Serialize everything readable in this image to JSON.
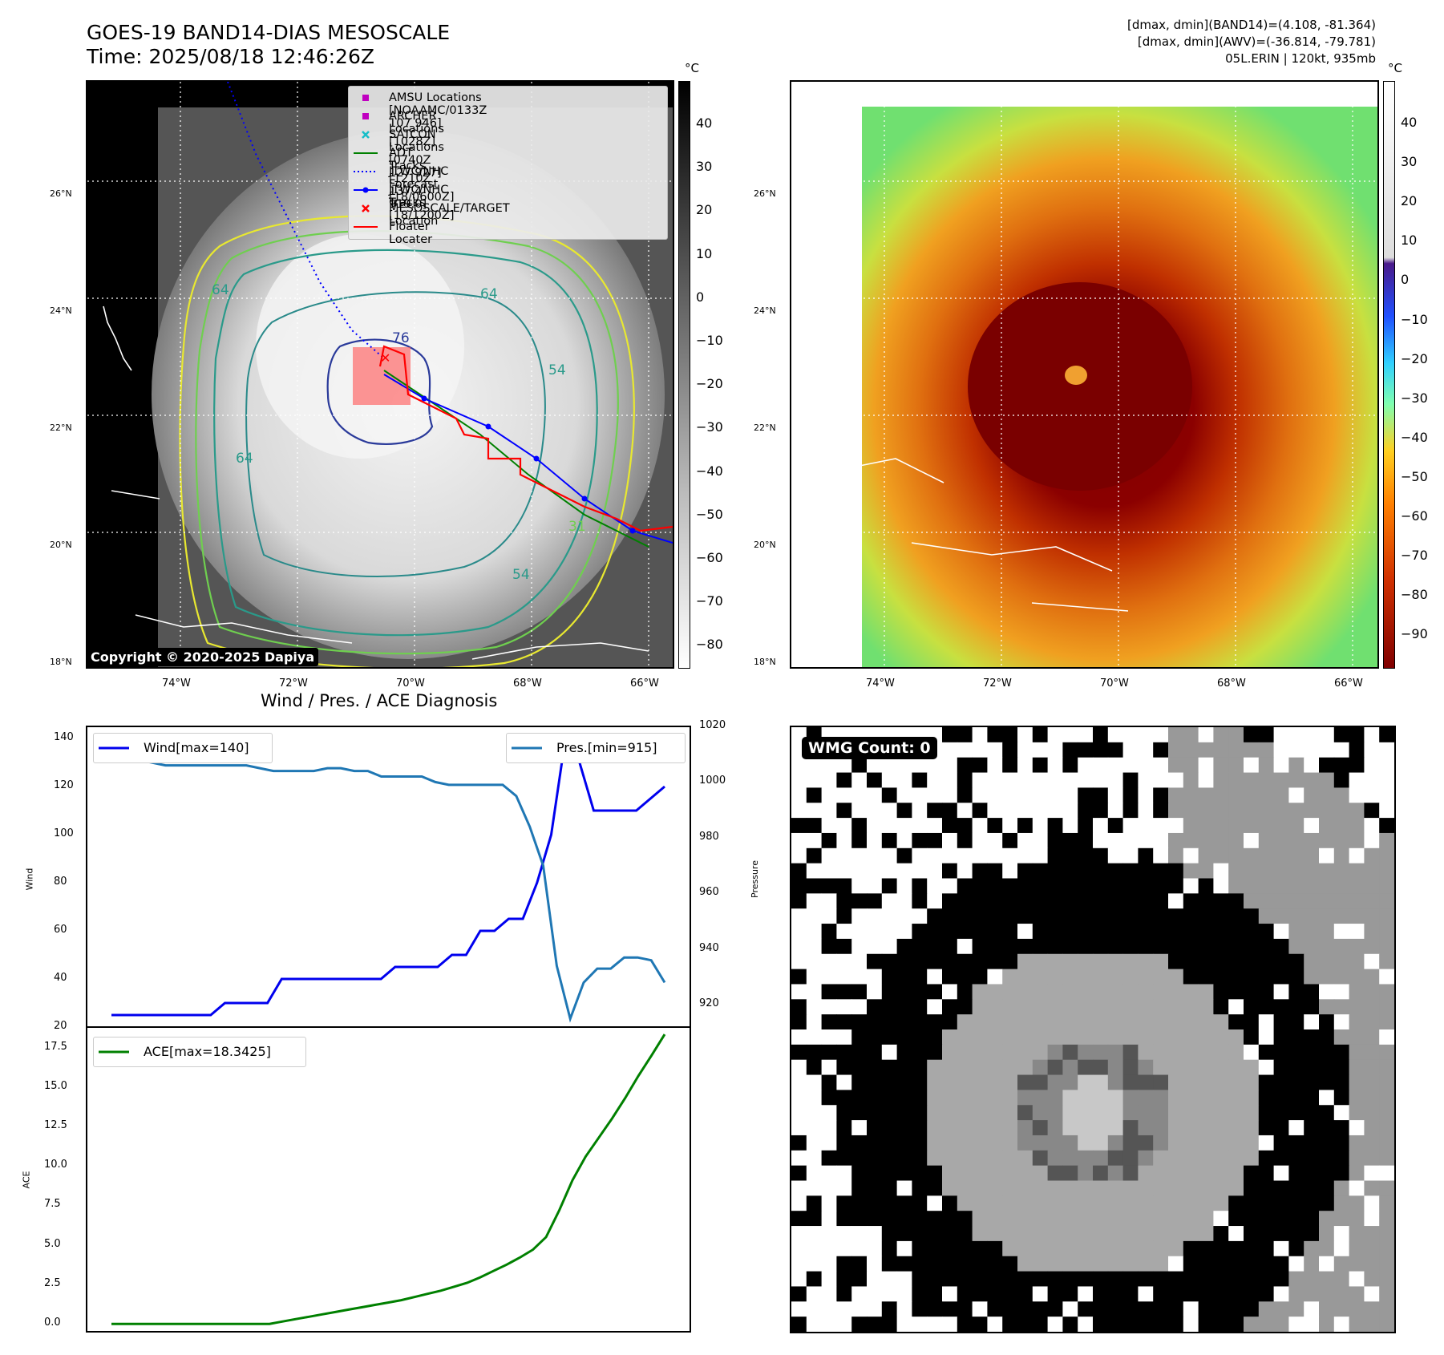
{
  "header": {
    "title_line1": "GOES-19 BAND14-DIAS MESOSCALE",
    "title_line2": "Time: 2025/08/18 12:46:26Z",
    "dminmax_band14": "[dmax, dmin](BAND14)=(4.108, -81.364)",
    "dminmax_awv": "[dmax, dmin](AWV)=(-36.814, -79.781)",
    "storm_info": "05L.ERIN | 120kt, 935mb"
  },
  "map": {
    "lat_labels": [
      "26°N",
      "24°N",
      "22°N",
      "20°N",
      "18°N"
    ],
    "lon_labels": [
      "74°W",
      "72°W",
      "70°W",
      "68°W",
      "66°W"
    ],
    "copyright": "Copyright © 2020-2025 Dapiya",
    "unit": "°C",
    "colorbar_gray_ticks": [
      "40",
      "30",
      "20",
      "10",
      "0",
      "−10",
      "−20",
      "−30",
      "−40",
      "−50",
      "−60",
      "−70",
      "−80"
    ],
    "colorbar_color_ticks": [
      "40",
      "30",
      "20",
      "10",
      "0",
      "−10",
      "−20",
      "−30",
      "−40",
      "−50",
      "−60",
      "−70",
      "−80",
      "−90"
    ],
    "contour_labels": [
      "64",
      "64",
      "76",
      "64",
      "54",
      "31",
      "54",
      "34",
      "64",
      "64"
    ],
    "legend": [
      {
        "label": "AMSU Locations [NOAAMC/0133Z 107 946]",
        "color": "#c000c0",
        "icon": "square-marker-icon"
      },
      {
        "label": "ARCHER Locations [1028Z]",
        "color": "#c000c0",
        "icon": "square-marker-icon"
      },
      {
        "label": "SATCON Locations [0740Z 127 927]",
        "color": "#17bec8",
        "icon": "x-marker-icon"
      },
      {
        "label": "ADT Tracks [1210Z 137.4 919.0]",
        "color": "#008000",
        "icon": "line-icon"
      },
      {
        "label": "JTWC/NHC Forecast [18/0600Z]",
        "color": "#0000ff",
        "icon": "dotted-line-icon"
      },
      {
        "label": "JTWC/NHC Tracks [18/1200Z]",
        "color": "#0000ff",
        "icon": "dot-line-icon"
      },
      {
        "label": "MESOSCALE/TARGET Location",
        "color": "#ff0000",
        "icon": "x-marker-icon"
      },
      {
        "label": "Floater Locater",
        "color": "#ff0000",
        "icon": "line-icon"
      }
    ]
  },
  "diagnosis": {
    "title": "Wind / Pres. / ACE Diagnosis",
    "wind_legend": "Wind[max=140]",
    "pres_legend": "Pres.[min=915]",
    "ace_legend": "ACE[max=18.3425]",
    "wind_axis_label": "Wind",
    "pres_axis_label": "Pressure",
    "ace_axis_label": "ACE",
    "wind_ticks": [
      "140",
      "120",
      "100",
      "80",
      "60",
      "40",
      "20"
    ],
    "pres_ticks": [
      "1020",
      "1000",
      "980",
      "960",
      "940",
      "920"
    ],
    "ace_ticks": [
      "17.5",
      "15.0",
      "12.5",
      "10.0",
      "7.5",
      "5.0",
      "2.5",
      "0.0"
    ]
  },
  "wmg": {
    "label": "WMG Count: 0"
  },
  "colors": {
    "wind": "#0000ee",
    "pres": "#1f77b4",
    "ace": "#008000",
    "track": "#ff0000"
  },
  "chart_data": [
    {
      "type": "line",
      "title": "Wind / Pres. / ACE Diagnosis",
      "ylabel": "Wind",
      "ylim": [
        20,
        145
      ],
      "series": [
        {
          "name": "Wind[max=140]",
          "values": [
            25,
            25,
            25,
            25,
            25,
            25,
            25,
            25,
            30,
            30,
            30,
            30,
            40,
            40,
            40,
            40,
            40,
            40,
            40,
            40,
            45,
            45,
            45,
            45,
            50,
            50,
            60,
            60,
            65,
            65,
            80,
            100,
            140,
            130,
            110,
            110,
            110,
            110,
            115,
            120
          ]
        }
      ]
    },
    {
      "type": "line",
      "ylabel": "Pressure",
      "ylim": [
        912,
        1020
      ],
      "series": [
        {
          "name": "Pres.[min=915]",
          "values": [
            1014,
            1014,
            1008,
            1007,
            1006,
            1006,
            1006,
            1006,
            1006,
            1006,
            1006,
            1005,
            1004,
            1004,
            1004,
            1004,
            1005,
            1005,
            1004,
            1004,
            1002,
            1002,
            1002,
            1002,
            1000,
            999,
            999,
            999,
            999,
            999,
            995,
            984,
            970,
            934,
            915,
            928,
            933,
            933,
            937,
            937,
            936,
            928
          ]
        }
      ]
    },
    {
      "type": "line",
      "ylabel": "ACE",
      "ylim": [
        -0.5,
        18.8
      ],
      "series": [
        {
          "name": "ACE[max=18.3425]",
          "values": [
            0,
            0,
            0,
            0,
            0,
            0,
            0,
            0,
            0,
            0,
            0,
            0,
            0,
            0.15,
            0.3,
            0.45,
            0.6,
            0.75,
            0.9,
            1.05,
            1.2,
            1.35,
            1.5,
            1.7,
            1.9,
            2.1,
            2.35,
            2.6,
            2.95,
            3.35,
            3.75,
            4.2,
            4.7,
            5.5,
            7.2,
            9.1,
            10.6,
            11.8,
            13.0,
            14.3,
            15.7,
            17.0,
            18.34
          ]
        }
      ]
    }
  ]
}
